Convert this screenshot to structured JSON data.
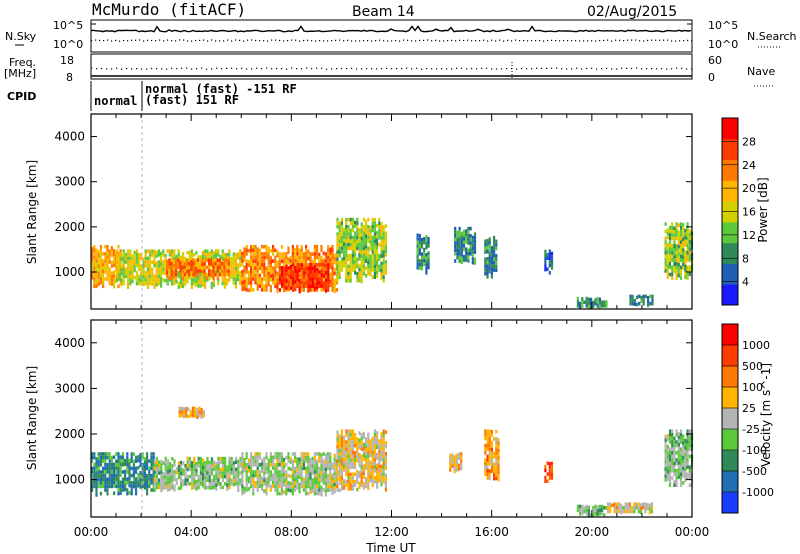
{
  "header": {
    "station": "McMurdo (fitACF)",
    "beam": "Beam 14",
    "date": "02/Aug/2015"
  },
  "status_panels": {
    "left_labels": {
      "nsky": "N.Sky",
      "freq_line1": "Freq.",
      "freq_line2": "[MHz]",
      "cpid": "CPID"
    },
    "right_labels": {
      "nsearch": "N.Search",
      "nave": "Nave"
    },
    "noise_ticks_left": [
      "10^5",
      "10^0"
    ],
    "noise_ticks_right": [
      "10^5",
      "10^0"
    ],
    "freq_ticks_left": [
      "18",
      "8"
    ],
    "nave_ticks_right": [
      "60",
      "0"
    ],
    "cpid_entries": [
      "normal",
      "normal (fast) -151 RF",
      "(fast) 151 RF"
    ]
  },
  "colors": {
    "power_scale": [
      "#1a1aff",
      "#1e5fb4",
      "#2e8b57",
      "#5cc83c",
      "#d4d000",
      "#ffb400",
      "#ff7800",
      "#ff3c00",
      "#ff0000"
    ],
    "velocity_scale": [
      "#1a3cff",
      "#1f6fb0",
      "#2e8b57",
      "#5cc83c",
      "#b4b4b4",
      "#ffb400",
      "#ff7800",
      "#ff3c00",
      "#ff0000"
    ]
  },
  "chart_data": [
    {
      "type": "heatmap",
      "panel": "power",
      "ylabel": "Slant Range [km]",
      "ylim": [
        180,
        4500
      ],
      "y_ticks": [
        "1000",
        "2000",
        "3000",
        "4000"
      ],
      "colorbar_label": "Power [dB]",
      "colorbar_ticks": [
        "4",
        "8",
        "12",
        "16",
        "20",
        "24",
        "28"
      ],
      "scale_range": [
        0,
        32
      ],
      "echo_regions": [
        {
          "x_start_h": 0.0,
          "x_end_h": 1.2,
          "range_km": [
            700,
            1600
          ],
          "value": 20
        },
        {
          "x_start_h": 1.0,
          "x_end_h": 6.0,
          "range_km": [
            700,
            1500
          ],
          "value": 16
        },
        {
          "x_start_h": 3.0,
          "x_end_h": 5.5,
          "range_km": [
            900,
            1300
          ],
          "value": 24
        },
        {
          "x_start_h": 6.0,
          "x_end_h": 9.8,
          "range_km": [
            600,
            1600
          ],
          "value": 22
        },
        {
          "x_start_h": 7.5,
          "x_end_h": 9.5,
          "range_km": [
            600,
            1200
          ],
          "value": 28
        },
        {
          "x_start_h": 9.8,
          "x_end_h": 11.8,
          "range_km": [
            800,
            2200
          ],
          "value": 14
        },
        {
          "x_start_h": 13.0,
          "x_end_h": 13.5,
          "range_km": [
            1000,
            1900
          ],
          "value": 8
        },
        {
          "x_start_h": 14.5,
          "x_end_h": 15.3,
          "range_km": [
            1200,
            2000
          ],
          "value": 8
        },
        {
          "x_start_h": 15.7,
          "x_end_h": 16.2,
          "range_km": [
            900,
            1800
          ],
          "value": 8
        },
        {
          "x_start_h": 18.1,
          "x_end_h": 18.4,
          "range_km": [
            1000,
            1500
          ],
          "value": 6
        },
        {
          "x_start_h": 19.4,
          "x_end_h": 20.6,
          "range_km": [
            250,
            450
          ],
          "value": 8
        },
        {
          "x_start_h": 21.5,
          "x_end_h": 22.4,
          "range_km": [
            300,
            500
          ],
          "value": 8
        },
        {
          "x_start_h": 22.9,
          "x_end_h": 24.0,
          "range_km": [
            900,
            2100
          ],
          "value": 14
        }
      ]
    },
    {
      "type": "heatmap",
      "panel": "velocity",
      "xlabel": "Time UT",
      "ylabel": "Slant Range [km]",
      "ylim": [
        180,
        4500
      ],
      "y_ticks": [
        "1000",
        "2000",
        "3000",
        "4000"
      ],
      "x_ticks": [
        "00:00",
        "04:00",
        "08:00",
        "12:00",
        "16:00",
        "20:00",
        "00:00"
      ],
      "colorbar_label": "Velocity [m s^-1]",
      "colorbar_ticks": [
        "1000",
        "500",
        "100",
        "25",
        "-25",
        "-100",
        "-500",
        "-1000"
      ],
      "echo_regions": [
        {
          "x_start_h": 0.0,
          "x_end_h": 2.5,
          "range_km": [
            700,
            1600
          ],
          "value": 600
        },
        {
          "x_start_h": 2.5,
          "x_end_h": 6.0,
          "range_km": [
            800,
            1500
          ],
          "value": 150
        },
        {
          "x_start_h": 3.5,
          "x_end_h": 4.5,
          "range_km": [
            2400,
            2600
          ],
          "value": -300
        },
        {
          "x_start_h": 6.0,
          "x_end_h": 9.8,
          "range_km": [
            700,
            1600
          ],
          "value": 100
        },
        {
          "x_start_h": 9.8,
          "x_end_h": 11.8,
          "range_km": [
            800,
            2100
          ],
          "value": -150
        },
        {
          "x_start_h": 14.3,
          "x_end_h": 14.8,
          "range_km": [
            1200,
            1600
          ],
          "value": -300
        },
        {
          "x_start_h": 15.7,
          "x_end_h": 16.3,
          "range_km": [
            1000,
            2100
          ],
          "value": -400
        },
        {
          "x_start_h": 18.1,
          "x_end_h": 18.4,
          "range_km": [
            1000,
            1400
          ],
          "value": -800
        },
        {
          "x_start_h": 19.4,
          "x_end_h": 20.6,
          "range_km": [
            250,
            450
          ],
          "value": 200
        },
        {
          "x_start_h": 20.6,
          "x_end_h": 22.4,
          "range_km": [
            300,
            500
          ],
          "value": -150
        },
        {
          "x_start_h": 22.9,
          "x_end_h": 24.0,
          "range_km": [
            900,
            2100
          ],
          "value": 200
        }
      ]
    }
  ]
}
